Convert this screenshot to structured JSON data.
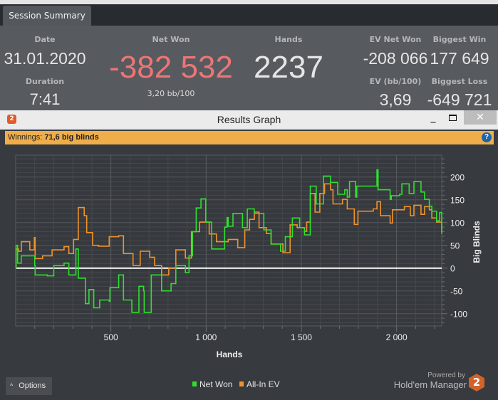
{
  "tab": {
    "label": "Session Summary"
  },
  "summary": {
    "date": {
      "label": "Date",
      "value": "31.01.2020"
    },
    "duration": {
      "label": "Duration",
      "value": "7:41"
    },
    "net_won": {
      "label": "Net Won",
      "value": "-382 532",
      "sub": "3,20 bb/100",
      "color": "#ee7575"
    },
    "hands": {
      "label": "Hands",
      "value": "2237"
    },
    "ev_net_won": {
      "label": "EV Net Won",
      "value": "-208 066"
    },
    "biggest_win": {
      "label": "Biggest Win",
      "value": "177 649"
    },
    "ev_bb100": {
      "label": "EV (bb/100)",
      "value": "3,69"
    },
    "biggest_loss": {
      "label": "Biggest Loss",
      "value": "-649 721"
    }
  },
  "window": {
    "title": "Results Graph",
    "app_icon": "hem-2-logo",
    "minimize": "_",
    "close": "✕"
  },
  "winnings_bar": {
    "label": "Winnings:",
    "value": "71,6 big blinds",
    "help": "?"
  },
  "options": {
    "label": "Options",
    "icon": "^"
  },
  "branding": {
    "powered_by": "Powered by",
    "product": "Hold'em Manager",
    "logo_text": "2"
  },
  "chart_data": {
    "type": "line",
    "xlabel": "Hands",
    "ylabel": "Big Blinds",
    "xlim": [
      0,
      2237
    ],
    "ylim": [
      -127,
      248
    ],
    "x_ticks": [
      {
        "v": 500,
        "label": "500"
      },
      {
        "v": 1000,
        "label": "1 000"
      },
      {
        "v": 1500,
        "label": "1 500"
      },
      {
        "v": 2000,
        "label": "2 000"
      }
    ],
    "y_ticks": [
      {
        "v": 200,
        "label": "200"
      },
      {
        "v": 150,
        "label": "150"
      },
      {
        "v": 100,
        "label": "100"
      },
      {
        "v": 50,
        "label": "50"
      },
      {
        "v": 0,
        "label": "0"
      },
      {
        "v": -50,
        "label": "-50"
      },
      {
        "v": -100,
        "label": "-100"
      }
    ],
    "grid": true,
    "legend": "bottom-center",
    "series": [
      {
        "name": "Net Won",
        "color": "#2ee02e",
        "points": [
          [
            0,
            0
          ],
          [
            2,
            50
          ],
          [
            10,
            11
          ],
          [
            29,
            27
          ],
          [
            100,
            6
          ],
          [
            102,
            -15
          ],
          [
            166,
            -17
          ],
          [
            200,
            6
          ],
          [
            254,
            11
          ],
          [
            279,
            -15
          ],
          [
            316,
            42
          ],
          [
            329,
            -22
          ],
          [
            366,
            -78
          ],
          [
            385,
            -47
          ],
          [
            410,
            -87
          ],
          [
            441,
            -70
          ],
          [
            491,
            -73
          ],
          [
            495,
            -43
          ],
          [
            541,
            -15
          ],
          [
            566,
            -70
          ],
          [
            610,
            -97
          ],
          [
            647,
            -40
          ],
          [
            672,
            -50
          ],
          [
            675,
            -97
          ],
          [
            710,
            -97
          ],
          [
            712,
            -15
          ],
          [
            766,
            -50
          ],
          [
            816,
            -34
          ],
          [
            841,
            6
          ],
          [
            891,
            -10
          ],
          [
            910,
            27
          ],
          [
            929,
            80
          ],
          [
            948,
            132
          ],
          [
            973,
            152
          ],
          [
            998,
            101
          ],
          [
            1029,
            42
          ],
          [
            1097,
            90
          ],
          [
            1110,
            111
          ],
          [
            1116,
            92
          ],
          [
            1141,
            120
          ],
          [
            1191,
            89
          ],
          [
            1216,
            130
          ],
          [
            1253,
            120
          ],
          [
            1303,
            84
          ],
          [
            1341,
            53
          ],
          [
            1391,
            37
          ],
          [
            1416,
            69
          ],
          [
            1453,
            110
          ],
          [
            1491,
            89
          ],
          [
            1516,
            73
          ],
          [
            1547,
            180
          ],
          [
            1578,
            141
          ],
          [
            1616,
            202
          ],
          [
            1653,
            188
          ],
          [
            1691,
            162
          ],
          [
            1728,
            172
          ],
          [
            1741,
            156
          ],
          [
            1753,
            190
          ],
          [
            1785,
            156
          ],
          [
            1791,
            180
          ],
          [
            1866,
            180
          ],
          [
            1897,
            216
          ],
          [
            1903,
            172
          ],
          [
            1966,
            151
          ],
          [
            1972,
            159
          ],
          [
            2016,
            162
          ],
          [
            2028,
            185
          ],
          [
            2066,
            164
          ],
          [
            2091,
            190
          ],
          [
            2128,
            167
          ],
          [
            2147,
            151
          ],
          [
            2172,
            136
          ],
          [
            2185,
            125
          ],
          [
            2210,
            104
          ],
          [
            2226,
            122
          ],
          [
            2237,
            75
          ]
        ]
      },
      {
        "name": "All-In EV",
        "color": "#f0922a",
        "points": [
          [
            0,
            0
          ],
          [
            2,
            42
          ],
          [
            15,
            37
          ],
          [
            30,
            58
          ],
          [
            74,
            40
          ],
          [
            98,
            67
          ],
          [
            102,
            21
          ],
          [
            141,
            27
          ],
          [
            191,
            40
          ],
          [
            254,
            47
          ],
          [
            279,
            32
          ],
          [
            304,
            63
          ],
          [
            329,
            133
          ],
          [
            360,
            115
          ],
          [
            373,
            78
          ],
          [
            404,
            50
          ],
          [
            435,
            48
          ],
          [
            491,
            69
          ],
          [
            541,
            71
          ],
          [
            566,
            32
          ],
          [
            616,
            6
          ],
          [
            654,
            37
          ],
          [
            704,
            24
          ],
          [
            729,
            6
          ],
          [
            766,
            -15
          ],
          [
            804,
            0
          ],
          [
            841,
            40
          ],
          [
            891,
            22
          ],
          [
            923,
            80
          ],
          [
            966,
            101
          ],
          [
            1016,
            75
          ],
          [
            1054,
            58
          ],
          [
            1116,
            63
          ],
          [
            1166,
            45
          ],
          [
            1203,
            84
          ],
          [
            1228,
            107
          ],
          [
            1253,
            123
          ],
          [
            1278,
            89
          ],
          [
            1316,
            76
          ],
          [
            1341,
            53
          ],
          [
            1403,
            34
          ],
          [
            1441,
            95
          ],
          [
            1478,
            89
          ],
          [
            1516,
            81
          ],
          [
            1528,
            101
          ],
          [
            1547,
            164
          ],
          [
            1572,
            123
          ],
          [
            1597,
            164
          ],
          [
            1622,
            185
          ],
          [
            1653,
            172
          ],
          [
            1666,
            141
          ],
          [
            1716,
            151
          ],
          [
            1741,
            130
          ],
          [
            1778,
            96
          ],
          [
            1797,
            125
          ],
          [
            1841,
            125
          ],
          [
            1878,
            130
          ],
          [
            1897,
            146
          ],
          [
            1916,
            115
          ],
          [
            1966,
            99
          ],
          [
            1978,
            128
          ],
          [
            2041,
            135
          ],
          [
            2072,
            115
          ],
          [
            2091,
            138
          ],
          [
            2128,
            118
          ],
          [
            2147,
            135
          ],
          [
            2172,
            128
          ],
          [
            2185,
            110
          ],
          [
            2210,
            101
          ],
          [
            2237,
            80
          ]
        ]
      }
    ]
  }
}
